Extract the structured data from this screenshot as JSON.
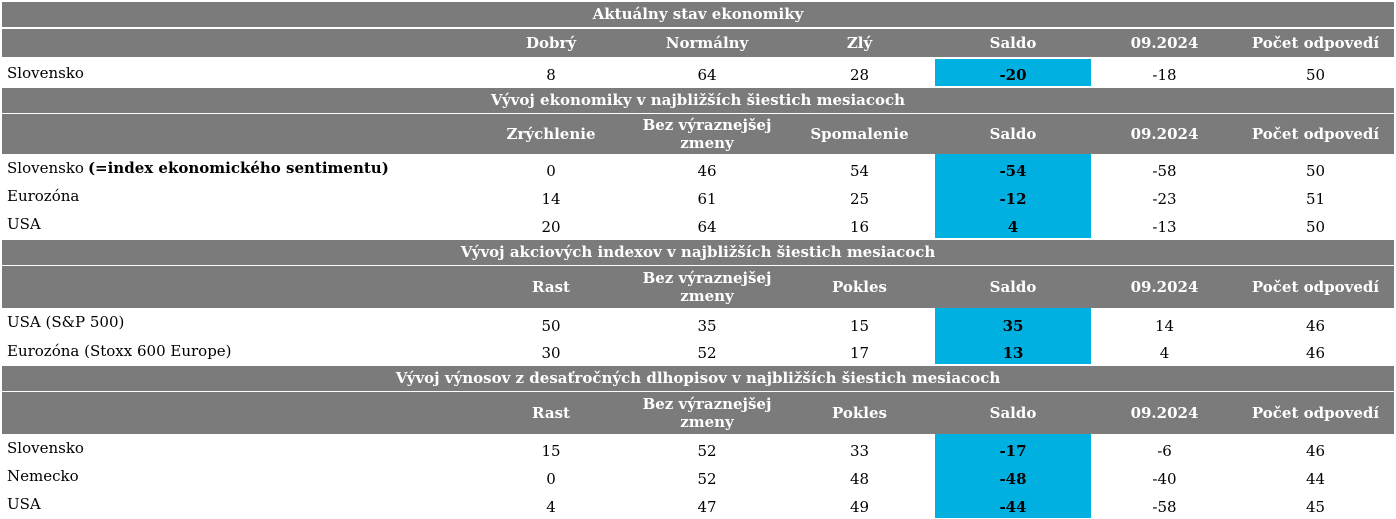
{
  "sections": [
    {
      "title": "Aktuálny stav ekonomiky",
      "headers": [
        "Dobrý",
        "Normálny",
        "Zlý",
        "Saldo",
        "09.2024",
        "Počet odpovedí"
      ],
      "rows": [
        {
          "label": "Slovensko",
          "values": [
            "8",
            "64",
            "28",
            "-20",
            "-18",
            "50"
          ]
        }
      ]
    },
    {
      "title": "Vývoj ekonomiky v najbližších šiestich mesiacoch",
      "headers": [
        "Zrýchlenie",
        "Bez výraznejšej\nzmeny",
        "Spomalenie",
        "Saldo",
        "09.2024",
        "Počet odpovedí"
      ],
      "rows": [
        {
          "label": "Slovensko ",
          "label_bold": "(=index ekonomického sentimentu)",
          "values": [
            "0",
            "46",
            "54",
            "-54",
            "-58",
            "50"
          ]
        },
        {
          "label": "Eurozóna",
          "values": [
            "14",
            "61",
            "25",
            "-12",
            "-23",
            "51"
          ]
        },
        {
          "label": "USA",
          "values": [
            "20",
            "64",
            "16",
            "4",
            "-13",
            "50"
          ]
        }
      ]
    },
    {
      "title": "Vývoj akciových indexov v najbližších šiestich mesiacoch",
      "headers": [
        "Rast",
        "Bez výraznejšej\nzmeny",
        "Pokles",
        "Saldo",
        "09.2024",
        "Počet odpovedí"
      ],
      "rows": [
        {
          "label": "USA (S&P 500)",
          "values": [
            "50",
            "35",
            "15",
            "35",
            "14",
            "46"
          ]
        },
        {
          "label": "Eurozóna (Stoxx 600 Europe)",
          "values": [
            "30",
            "52",
            "17",
            "13",
            "4",
            "46"
          ]
        }
      ]
    },
    {
      "title": "Vývoj výnosov z desaťročných dlhopisov v najbližších šiestich mesiacoch",
      "headers": [
        "Rast",
        "Bez výraznejšej\nzmeny",
        "Pokles",
        "Saldo",
        "09.2024",
        "Počet odpovedí"
      ],
      "rows": [
        {
          "label": "Slovensko",
          "values": [
            "15",
            "52",
            "33",
            "-17",
            "-6",
            "46"
          ]
        },
        {
          "label": "Nemecko",
          "values": [
            "0",
            "52",
            "48",
            "-48",
            "-40",
            "44"
          ]
        },
        {
          "label": "USA",
          "values": [
            "4",
            "47",
            "49",
            "-44",
            "-58",
            "45"
          ]
        }
      ]
    }
  ]
}
